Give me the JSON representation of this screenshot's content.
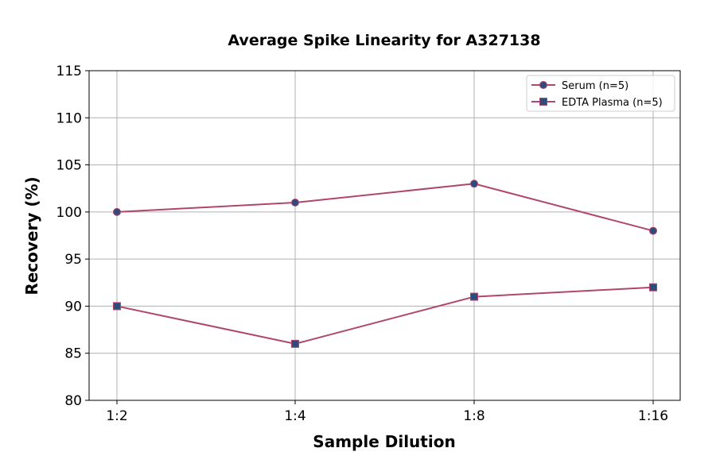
{
  "chart_data": {
    "type": "line",
    "title": "Average Spike Linearity for A327138",
    "xlabel": "Sample Dilution",
    "ylabel": "Recovery (%)",
    "categories": [
      "1:2",
      "1:4",
      "1:8",
      "1:16"
    ],
    "ylim": [
      80,
      115
    ],
    "yticks": [
      80,
      85,
      90,
      95,
      100,
      105,
      110,
      115
    ],
    "grid": true,
    "legend_position": "top-right",
    "series": [
      {
        "name": "Serum (n=5)",
        "values": [
          100,
          101,
          103,
          98
        ],
        "marker": "circle",
        "line_color": "#b0466e",
        "marker_color": "#2f4b7c"
      },
      {
        "name": "EDTA Plasma (n=5)",
        "values": [
          90,
          86,
          91,
          92
        ],
        "marker": "square",
        "line_color": "#b0466e",
        "marker_color": "#2f4b7c"
      }
    ]
  }
}
